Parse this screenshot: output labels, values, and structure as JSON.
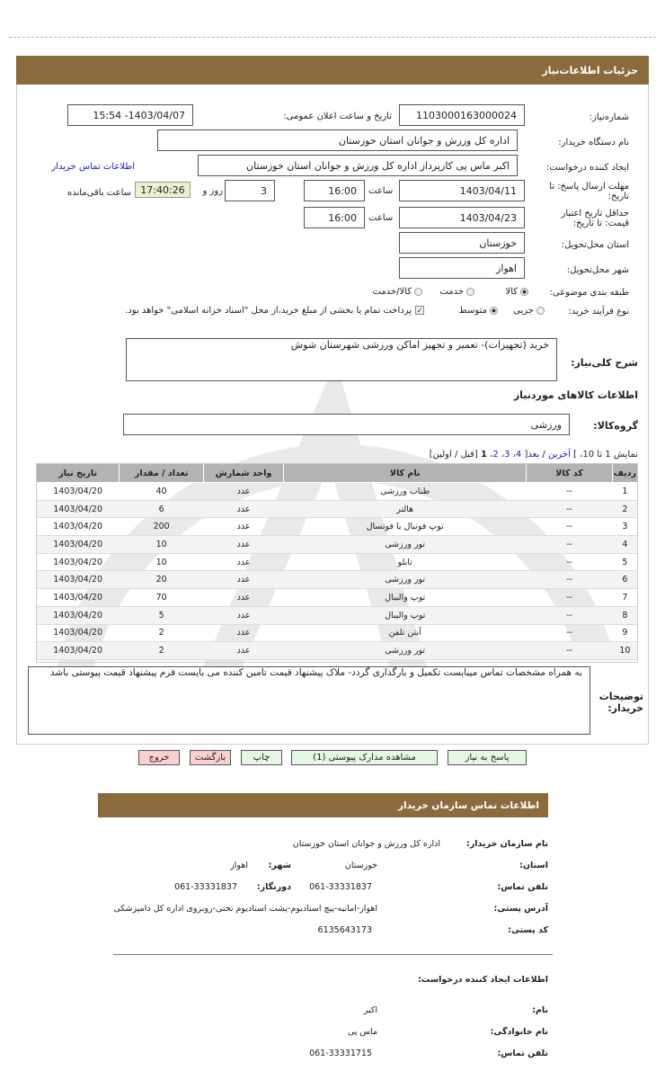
{
  "header": {
    "title": "جزئیات اطلاعات‌نیاز"
  },
  "form": {
    "need_number_label": "شماره‌نیاز:",
    "need_number": "1103000163000024",
    "announce_label": "تاریخ و ساعت اعلان عمومی:",
    "announce_value": "1403/04/07- 15:54",
    "buyer_label": "نام دستگاه خریدار:",
    "buyer_value": "اداره کل ورزش و جوانان استان خوزستان",
    "creator_label": "ایجاد کننده درخواست:",
    "creator_value": "اکبر ماس پی کارپرداز اداره کل ورزش و جوانان استان خوزستان",
    "contact_link": "اطلاعات تماس خریدار",
    "deadline_label": "مهلت ارسال پاسخ: تا تاریخ:",
    "deadline_date": "1403/04/11",
    "time_label": "ساعت",
    "deadline_time": "16:00",
    "days": "3",
    "days_label": "روز و",
    "remaining": "17:40:26",
    "remaining_label": "ساعت باقی‌مانده",
    "validity_label": "حداقل تاریخ اعتبار قیمت: تا تاریخ:",
    "validity_date": "1403/04/23",
    "validity_time": "16:00",
    "province_label": "استان محل‌تحویل:",
    "province": "خوزستان",
    "city_label": "شهر محل‌تحویل:",
    "city": "اهواز",
    "category_label": "طبقه بندی موضوعی:",
    "category_options": [
      "کالا",
      "خدمت",
      "کالا/خدمت"
    ],
    "category_selected": "کالا",
    "process_label": "نوع فرآیند خرید:",
    "process_options": [
      "جزیی",
      "متوسط"
    ],
    "process_selected": "متوسط",
    "payment_note": "پرداخت تمام یا بخشی از مبلغ خرید،از محل \"اسناد خزانه اسلامی\" خواهد بود.",
    "payment_checked": true
  },
  "details": {
    "desc_label": "شرح کلی‌نیاز:",
    "desc": "خرید (تجهیزات)- تعمیر و تجهیز اماکن ورزشی شهرستان شوش",
    "goods_title": "اطلاعات کالاهای موردنیاز",
    "group_label": "گروه‌کالا:",
    "group": "ورزشی",
    "pager": {
      "text1": "نمایش 1 تا 10،",
      "text2": "]",
      "last": "آخرین",
      "sep": "/",
      "next": "بعد",
      "pages": [
        "1",
        "2",
        "3",
        "4"
      ],
      "prev_first": "[قبل / اولین]"
    },
    "columns": [
      "ردیف",
      "کد کالا",
      "نام کالا",
      "واحد شمارش",
      "تعداد / مقدار",
      "تاریخ نیاز"
    ],
    "rows": [
      [
        "1",
        "--",
        "طناب ورزشی",
        "عدد",
        "40",
        "1403/04/20"
      ],
      [
        "2",
        "--",
        "هالتر",
        "عدد",
        "6",
        "1403/04/20"
      ],
      [
        "3",
        "--",
        "توپ فوتبال یا فوتسال",
        "عدد",
        "200",
        "1403/04/20"
      ],
      [
        "4",
        "--",
        "تور ورزشی",
        "عدد",
        "10",
        "1403/04/20"
      ],
      [
        "5",
        "--",
        "تابلو",
        "عدد",
        "10",
        "1403/04/20"
      ],
      [
        "6",
        "--",
        "تور ورزشی",
        "عدد",
        "20",
        "1403/04/20"
      ],
      [
        "7",
        "--",
        "توپ والیبال",
        "عدد",
        "70",
        "1403/04/20"
      ],
      [
        "8",
        "--",
        "توپ والیبال",
        "عدد",
        "5",
        "1403/04/20"
      ],
      [
        "9",
        "--",
        "آنتن تلفن",
        "عدد",
        "2",
        "1403/04/20"
      ],
      [
        "10",
        "--",
        "تور ورزشی",
        "عدد",
        "2",
        "1403/04/20"
      ]
    ],
    "notes_label": "توضیحات خریدار:",
    "notes": "به همراه مشخصات تماس میبایست تکمیل و بارگذاری گردد- ملاک پیشنهاد قیمت تامین کننده می بایست فرم پیشنهاد قیمت پیوستی باشد"
  },
  "buttons": {
    "reply": "پاسخ به نیاز",
    "attachments": "مشاهده مدارک پیوستی (1)",
    "print": "چاپ",
    "back": "بازگشت",
    "exit": "خروج"
  },
  "contact": {
    "title": "اطلاعات تماس سازمان خریدار",
    "org_label": "نام سازمان خریدار:",
    "org": "اداره کل ورزش و جوانان استان خوزستان",
    "province_label": "استان:",
    "province": "خوزستان",
    "city_label": "شهر:",
    "city": "اهواز",
    "phone_label": "تلفن تماس:",
    "phone": "061-33331837",
    "fax_label": "دورنگار:",
    "fax": "061-33331837",
    "address_label": "آدرس پستی:",
    "address": "اهواز-امانیه-پیچ استادیوم-پشت استادیوم تختی-روبروی اداره کل دامپزشکی",
    "postal_label": "کد پستی:",
    "postal": "6135643173",
    "creator_title": "اطلاعات ایجاد کننده درخواست:",
    "name_label": "نام:",
    "name": "اکبر",
    "family_label": "نام خانوادگی:",
    "family": "ماس پی",
    "cphone_label": "تلفن تماس:",
    "cphone": "061-33331715"
  },
  "colors": {
    "header": "#8b6b3d",
    "table_header": "#b3b3b3",
    "btn_green": "#e6f7e6",
    "btn_pink": "#f9d1d1",
    "remaining_bg": "#eeeed0"
  }
}
